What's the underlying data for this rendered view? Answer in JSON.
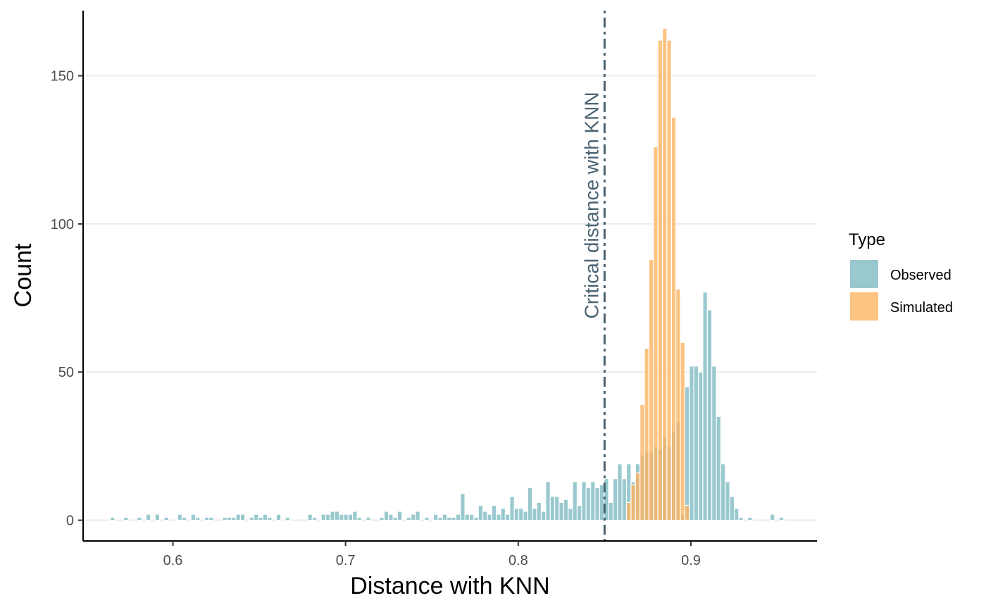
{
  "chart_data": {
    "type": "bar",
    "xlabel": "Distance with KNN",
    "ylabel": "Count",
    "xlim": [
      0.548,
      0.973
    ],
    "ylim": [
      -7,
      172
    ],
    "x_ticks": [
      0.6,
      0.7,
      0.8,
      0.9
    ],
    "x_tick_labels": [
      "0.6",
      "0.7",
      "0.8",
      "0.9"
    ],
    "y_ticks": [
      0,
      50,
      100,
      150
    ],
    "y_tick_labels": [
      "0",
      "50",
      "100",
      "150"
    ],
    "grid": "horizontal major",
    "bin_width": 0.0026,
    "legend": {
      "title": "Type",
      "position": "right",
      "entries": [
        {
          "name": "Observed",
          "color": "#7fbcc2"
        },
        {
          "name": "Simulated",
          "color": "#fdb462"
        }
      ]
    },
    "reference_line": {
      "x": 0.85,
      "label": "Critical distance with KNN",
      "color": "#4a6473",
      "style": "dotdash"
    },
    "series": [
      {
        "name": "Observed",
        "color": "#7fbcc2",
        "x": [
          0.565,
          0.5728,
          0.5806,
          0.5858,
          0.591,
          0.5962,
          0.604,
          0.6066,
          0.6118,
          0.6144,
          0.6196,
          0.6222,
          0.63,
          0.6326,
          0.6352,
          0.6378,
          0.6404,
          0.6456,
          0.6482,
          0.6508,
          0.6534,
          0.656,
          0.6612,
          0.6664,
          0.6794,
          0.682,
          0.6872,
          0.6898,
          0.6924,
          0.695,
          0.6976,
          0.7002,
          0.7028,
          0.7054,
          0.708,
          0.7132,
          0.721,
          0.7236,
          0.7262,
          0.7288,
          0.7314,
          0.7366,
          0.7392,
          0.7418,
          0.747,
          0.7522,
          0.7548,
          0.7574,
          0.76,
          0.7626,
          0.7652,
          0.7678,
          0.7704,
          0.773,
          0.7756,
          0.7782,
          0.7808,
          0.7834,
          0.786,
          0.7886,
          0.7912,
          0.7938,
          0.7964,
          0.799,
          0.8016,
          0.8042,
          0.8068,
          0.8094,
          0.812,
          0.8146,
          0.8172,
          0.8198,
          0.8224,
          0.825,
          0.8276,
          0.8302,
          0.8328,
          0.8354,
          0.838,
          0.8406,
          0.8432,
          0.8458,
          0.8484,
          0.851,
          0.8536,
          0.8562,
          0.8588,
          0.8614,
          0.864,
          0.8666,
          0.8692,
          0.8718,
          0.8744,
          0.877,
          0.8796,
          0.8822,
          0.8848,
          0.8874,
          0.89,
          0.8926,
          0.8952,
          0.8978,
          0.9004,
          0.903,
          0.9056,
          0.9082,
          0.9108,
          0.9134,
          0.916,
          0.9186,
          0.9212,
          0.9238,
          0.9264,
          0.929,
          0.9342,
          0.9472,
          0.9524
        ],
        "values": [
          1,
          1,
          1,
          2,
          2,
          1,
          2,
          1,
          2,
          1,
          1,
          1,
          1,
          1,
          1,
          2,
          2,
          1,
          2,
          1,
          2,
          1,
          2,
          1,
          2,
          1,
          2,
          2,
          3,
          3,
          2,
          2,
          2,
          3,
          1,
          1,
          1,
          3,
          2,
          1,
          3,
          1,
          2,
          3,
          1,
          2,
          1,
          2,
          1,
          1,
          2,
          9,
          2,
          2,
          1,
          5,
          3,
          2,
          5,
          2,
          4,
          2,
          8,
          4,
          4,
          3,
          11,
          4,
          6,
          3,
          13,
          8,
          8,
          6,
          7,
          4,
          13,
          5,
          13,
          11,
          13,
          11,
          12,
          14,
          6,
          14,
          19,
          14,
          19,
          13,
          19,
          22,
          23,
          23,
          25,
          24,
          28,
          25,
          30,
          33,
          2,
          45,
          52,
          52,
          50,
          77,
          71,
          52,
          35,
          19,
          13,
          8,
          4,
          1,
          1,
          2,
          1
        ]
      },
      {
        "name": "Simulated",
        "color": "#fdb462",
        "x": [
          0.864,
          0.8666,
          0.8692,
          0.8718,
          0.8744,
          0.877,
          0.8796,
          0.8822,
          0.8848,
          0.8874,
          0.89,
          0.8926,
          0.8952,
          0.8978
        ],
        "values": [
          6,
          12,
          16,
          39,
          58,
          88,
          126,
          162,
          166,
          162,
          136,
          78,
          60,
          5
        ]
      }
    ]
  }
}
